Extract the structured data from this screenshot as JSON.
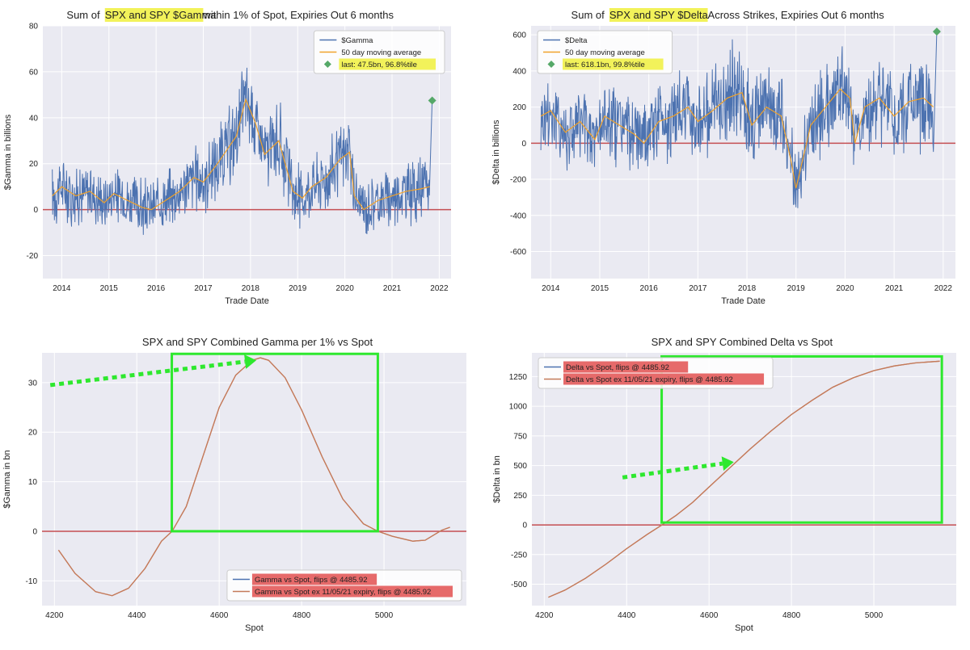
{
  "colors": {
    "plot_bg": "#eaeaf2",
    "grid": "#ffffff",
    "series_blue": "#4c72b0",
    "series_orange": "#f0a22b",
    "zero_line": "#c44e52",
    "curve": "#c47a5a",
    "marker": "#55a868",
    "highlight_yellow": "#f2f25a",
    "highlight_red": "#e66a6a",
    "annotation_green": "#2ee82e",
    "text": "#222222"
  },
  "chart_data": [
    {
      "id": "gamma_ts",
      "type": "line",
      "title_parts": [
        {
          "text": "Sum of ",
          "hl": false
        },
        {
          "text": "SPX and SPY $Gamma",
          "hl": true
        },
        {
          "text": " within 1% of Spot, Expiries Out 6 months",
          "hl": false
        }
      ],
      "xlabel": "Trade Date",
      "ylabel": "$Gamma in billions",
      "xlim": [
        2013.6,
        2022.25
      ],
      "ylim": [
        -30,
        80
      ],
      "xticks": [
        2014,
        2015,
        2016,
        2017,
        2018,
        2019,
        2020,
        2021,
        2022
      ],
      "xtick_labels": [
        "2014",
        "2015",
        "2016",
        "2017",
        "2018",
        "2019",
        "2020",
        "2021",
        "2022"
      ],
      "yticks": [
        -20,
        0,
        20,
        40,
        60,
        80
      ],
      "ytick_labels": [
        "-20",
        "0",
        "20",
        "40",
        "60",
        "80"
      ],
      "zero_line": 0,
      "moving_average_points": [
        [
          2013.8,
          6
        ],
        [
          2014.0,
          10
        ],
        [
          2014.3,
          6
        ],
        [
          2014.6,
          8
        ],
        [
          2014.9,
          3
        ],
        [
          2015.1,
          7
        ],
        [
          2015.4,
          4
        ],
        [
          2015.7,
          1
        ],
        [
          2015.9,
          0
        ],
        [
          2016.2,
          4
        ],
        [
          2016.5,
          8
        ],
        [
          2016.8,
          14
        ],
        [
          2017.0,
          12
        ],
        [
          2017.3,
          20
        ],
        [
          2017.5,
          26
        ],
        [
          2017.7,
          32
        ],
        [
          2017.9,
          48
        ],
        [
          2018.1,
          38
        ],
        [
          2018.3,
          24
        ],
        [
          2018.6,
          30
        ],
        [
          2018.9,
          8
        ],
        [
          2019.1,
          5
        ],
        [
          2019.3,
          10
        ],
        [
          2019.6,
          14
        ],
        [
          2019.9,
          22
        ],
        [
          2020.1,
          25
        ],
        [
          2020.2,
          6
        ],
        [
          2020.4,
          0
        ],
        [
          2020.7,
          4
        ],
        [
          2021.0,
          6
        ],
        [
          2021.3,
          8
        ],
        [
          2021.6,
          9
        ],
        [
          2021.8,
          10
        ]
      ],
      "series": [
        {
          "name": "$Gamma",
          "color_key": "series_blue",
          "style": "volatile",
          "amplitude": 9
        },
        {
          "name": "50 day moving average",
          "color_key": "series_orange",
          "style": "smooth"
        }
      ],
      "last_point": {
        "x": 2021.85,
        "y": 47.5
      },
      "legend": {
        "position": "top-right",
        "entries": [
          {
            "label": "$Gamma",
            "kind": "line",
            "color_key": "series_blue",
            "hl": null
          },
          {
            "label": "50 day moving average",
            "kind": "line",
            "color_key": "series_orange",
            "hl": null
          },
          {
            "label": "last: 47.5bn, 96.8%tile",
            "kind": "marker",
            "color_key": "marker",
            "hl": "highlight_yellow"
          }
        ]
      }
    },
    {
      "id": "delta_ts",
      "type": "line",
      "title_parts": [
        {
          "text": "Sum of ",
          "hl": false
        },
        {
          "text": "SPX and SPY $Delta",
          "hl": true
        },
        {
          "text": " Across Strikes, Expiries Out 6 months",
          "hl": false
        }
      ],
      "xlabel": "Trade Date",
      "ylabel": "$Delta in billions",
      "xlim": [
        2013.6,
        2022.25
      ],
      "ylim": [
        -750,
        650
      ],
      "xticks": [
        2014,
        2015,
        2016,
        2017,
        2018,
        2019,
        2020,
        2021,
        2022
      ],
      "xtick_labels": [
        "2014",
        "2015",
        "2016",
        "2017",
        "2018",
        "2019",
        "2020",
        "2021",
        "2022"
      ],
      "yticks": [
        -600,
        -400,
        -200,
        0,
        200,
        400,
        600
      ],
      "ytick_labels": [
        "-600",
        "-400",
        "-200",
        "0",
        "200",
        "400",
        "600"
      ],
      "zero_line": 0,
      "moving_average_points": [
        [
          2013.8,
          150
        ],
        [
          2014.0,
          180
        ],
        [
          2014.3,
          60
        ],
        [
          2014.6,
          120
        ],
        [
          2014.9,
          20
        ],
        [
          2015.1,
          150
        ],
        [
          2015.4,
          100
        ],
        [
          2015.7,
          50
        ],
        [
          2015.9,
          0
        ],
        [
          2016.2,
          120
        ],
        [
          2016.5,
          150
        ],
        [
          2016.8,
          200
        ],
        [
          2017.0,
          120
        ],
        [
          2017.3,
          180
        ],
        [
          2017.6,
          250
        ],
        [
          2017.9,
          280
        ],
        [
          2018.1,
          100
        ],
        [
          2018.4,
          200
        ],
        [
          2018.7,
          150
        ],
        [
          2018.9,
          -100
        ],
        [
          2019.0,
          -250
        ],
        [
          2019.3,
          100
        ],
        [
          2019.6,
          200
        ],
        [
          2019.9,
          300
        ],
        [
          2020.1,
          250
        ],
        [
          2020.2,
          0
        ],
        [
          2020.4,
          200
        ],
        [
          2020.7,
          250
        ],
        [
          2021.0,
          150
        ],
        [
          2021.3,
          230
        ],
        [
          2021.6,
          250
        ],
        [
          2021.8,
          200
        ]
      ],
      "series": [
        {
          "name": "$Delta",
          "color_key": "series_blue",
          "style": "volatile",
          "amplitude": 140
        },
        {
          "name": "50 day moving average",
          "color_key": "series_orange",
          "style": "smooth"
        }
      ],
      "last_point": {
        "x": 2021.87,
        "y": 618.1
      },
      "legend": {
        "position": "top-left",
        "entries": [
          {
            "label": "$Delta",
            "kind": "line",
            "color_key": "series_blue",
            "hl": null
          },
          {
            "label": "50 day moving average",
            "kind": "line",
            "color_key": "series_orange",
            "hl": null
          },
          {
            "label": "last: 618.1bn, 99.8%tile",
            "kind": "marker",
            "color_key": "marker",
            "hl": "highlight_yellow"
          }
        ]
      }
    },
    {
      "id": "gamma_spot",
      "type": "line",
      "title_parts": [
        {
          "text": "SPX and SPY Combined Gamma per 1% vs Spot",
          "hl": false
        }
      ],
      "xlabel": "Spot",
      "ylabel": "$Gamma in bn",
      "xlim": [
        4170,
        5200
      ],
      "ylim": [
        -15,
        36
      ],
      "xticks": [
        4200,
        4400,
        4600,
        4800,
        5000
      ],
      "xtick_labels": [
        "4200",
        "4400",
        "4600",
        "4800",
        "5000"
      ],
      "yticks": [
        -10,
        0,
        10,
        20,
        30
      ],
      "ytick_labels": [
        "-10",
        "0",
        "10",
        "20",
        "30"
      ],
      "zero_line": 0,
      "series": [
        {
          "name": "Gamma vs Spot, flips @ 4485.92",
          "color_key": "curve",
          "points": [
            [
              4210,
              -3.8
            ],
            [
              4250,
              -8.5
            ],
            [
              4300,
              -12.2
            ],
            [
              4340,
              -13.0
            ],
            [
              4380,
              -11.5
            ],
            [
              4420,
              -7.5
            ],
            [
              4460,
              -2.0
            ],
            [
              4485.92,
              0
            ],
            [
              4520,
              5.0
            ],
            [
              4560,
              15.0
            ],
            [
              4600,
              25.0
            ],
            [
              4640,
              31.5
            ],
            [
              4680,
              34.5
            ],
            [
              4700,
              35.0
            ],
            [
              4720,
              34.5
            ],
            [
              4760,
              31.0
            ],
            [
              4800,
              24.5
            ],
            [
              4850,
              15.0
            ],
            [
              4900,
              6.5
            ],
            [
              4950,
              1.5
            ],
            [
              4985,
              0
            ],
            [
              5020,
              -1.0
            ],
            [
              5070,
              -2.0
            ],
            [
              5100,
              -1.8
            ],
            [
              5140,
              0.2
            ],
            [
              5160,
              0.8
            ]
          ]
        },
        {
          "name": "Gamma vs Spot ex 11/05/21 expiry, flips @ 4485.92",
          "color_key": "curve",
          "points": [
            [
              4210,
              -3.8
            ],
            [
              4250,
              -8.5
            ],
            [
              4300,
              -12.2
            ],
            [
              4340,
              -13.0
            ],
            [
              4380,
              -11.5
            ],
            [
              4420,
              -7.5
            ],
            [
              4460,
              -2.0
            ],
            [
              4485.92,
              0
            ],
            [
              4520,
              5.0
            ],
            [
              4560,
              15.0
            ],
            [
              4600,
              25.0
            ],
            [
              4640,
              31.5
            ],
            [
              4680,
              34.5
            ],
            [
              4700,
              35.0
            ],
            [
              4720,
              34.5
            ],
            [
              4760,
              31.0
            ],
            [
              4800,
              24.5
            ],
            [
              4850,
              15.0
            ],
            [
              4900,
              6.5
            ],
            [
              4950,
              1.5
            ],
            [
              4985,
              0
            ],
            [
              5020,
              -1.0
            ],
            [
              5070,
              -2.0
            ],
            [
              5100,
              -1.8
            ],
            [
              5140,
              0.2
            ],
            [
              5160,
              0.8
            ]
          ]
        }
      ],
      "legend": {
        "position": "lower-right",
        "entries": [
          {
            "label": "Gamma vs Spot, flips @ 4485.92",
            "kind": "line",
            "color_key": "series_blue",
            "hl": "highlight_red"
          },
          {
            "label": "Gamma vs Spot ex 11/05/21 expiry, flips @ 4485.92",
            "kind": "line",
            "color_key": "curve",
            "hl": "highlight_red"
          }
        ]
      },
      "annotation_box": {
        "x0": 4485,
        "x1": 4985,
        "y0": 0,
        "y1": 35.8
      },
      "annotation_arrow": {
        "from": [
          4190,
          29.5
        ],
        "to": [
          4690,
          34.5
        ]
      }
    },
    {
      "id": "delta_spot",
      "type": "line",
      "title_parts": [
        {
          "text": "SPX and SPY Combined Delta vs Spot",
          "hl": false
        }
      ],
      "xlabel": "Spot",
      "ylabel": "$Delta in bn",
      "xlim": [
        4170,
        5200
      ],
      "ylim": [
        -680,
        1450
      ],
      "xticks": [
        4200,
        4400,
        4600,
        4800,
        5000
      ],
      "xtick_labels": [
        "4200",
        "4400",
        "4600",
        "4800",
        "5000"
      ],
      "yticks": [
        -500,
        -250,
        0,
        250,
        500,
        750,
        1000,
        1250
      ],
      "ytick_labels": [
        "-500",
        "-250",
        "0",
        "250",
        "500",
        "750",
        "1000",
        "1250"
      ],
      "zero_line": 0,
      "series": [
        {
          "name": "Delta vs Spot, flips @ 4485.92",
          "color_key": "curve",
          "points": [
            [
              4210,
              -610
            ],
            [
              4250,
              -550
            ],
            [
              4300,
              -450
            ],
            [
              4350,
              -330
            ],
            [
              4400,
              -200
            ],
            [
              4450,
              -80
            ],
            [
              4485.92,
              0
            ],
            [
              4520,
              80
            ],
            [
              4560,
              190
            ],
            [
              4600,
              320
            ],
            [
              4650,
              480
            ],
            [
              4700,
              640
            ],
            [
              4750,
              790
            ],
            [
              4800,
              930
            ],
            [
              4850,
              1050
            ],
            [
              4900,
              1160
            ],
            [
              4950,
              1240
            ],
            [
              5000,
              1300
            ],
            [
              5050,
              1340
            ],
            [
              5100,
              1365
            ],
            [
              5160,
              1380
            ]
          ]
        },
        {
          "name": "Delta vs Spot ex 11/05/21 expiry, flips @ 4485.92",
          "color_key": "curve",
          "points": [
            [
              4210,
              -610
            ],
            [
              4250,
              -550
            ],
            [
              4300,
              -450
            ],
            [
              4350,
              -330
            ],
            [
              4400,
              -200
            ],
            [
              4450,
              -80
            ],
            [
              4485.92,
              0
            ],
            [
              4520,
              80
            ],
            [
              4560,
              190
            ],
            [
              4600,
              320
            ],
            [
              4650,
              480
            ],
            [
              4700,
              640
            ],
            [
              4750,
              790
            ],
            [
              4800,
              930
            ],
            [
              4850,
              1050
            ],
            [
              4900,
              1160
            ],
            [
              4950,
              1240
            ],
            [
              5000,
              1300
            ],
            [
              5050,
              1340
            ],
            [
              5100,
              1365
            ],
            [
              5160,
              1380
            ]
          ]
        }
      ],
      "legend": {
        "position": "top-left",
        "entries": [
          {
            "label": "Delta vs Spot, flips @ 4485.92",
            "kind": "line",
            "color_key": "series_blue",
            "hl": "highlight_red"
          },
          {
            "label": "Delta vs Spot ex 11/05/21 expiry, flips @ 4485.92",
            "kind": "line",
            "color_key": "curve",
            "hl": "highlight_red"
          }
        ]
      },
      "annotation_box": {
        "x0": 4485,
        "x1": 5165,
        "y0": 20,
        "y1": 1420
      },
      "annotation_arrow": {
        "from": [
          4390,
          400
        ],
        "to": [
          4660,
          530
        ]
      }
    }
  ]
}
